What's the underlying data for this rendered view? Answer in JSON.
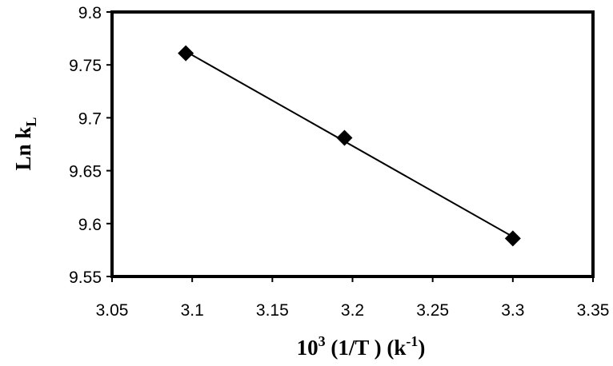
{
  "chart_data": {
    "type": "scatter",
    "title": "",
    "xlabel": {
      "base": "10",
      "exp": "3",
      "rest": " (1/T ) (k",
      "exp2": "-1",
      "end": ")"
    },
    "ylabel": {
      "base": "Ln k",
      "sub": "L"
    },
    "xlim": [
      3.05,
      3.35
    ],
    "ylim": [
      9.55,
      9.8
    ],
    "xticks": [
      "3.05",
      "3.1",
      "3.15",
      "3.2",
      "3.25",
      "3.3",
      "3.35"
    ],
    "yticks": [
      "9.55",
      "9.6",
      "9.65",
      "9.7",
      "9.75",
      "9.8"
    ],
    "grid": false,
    "legend": "none",
    "series": [
      {
        "x": [
          3.096,
          3.195,
          3.3
        ],
        "y": [
          9.761,
          9.681,
          9.586
        ],
        "marker": "diamond",
        "color": "#000000",
        "line": "linear-fit"
      }
    ]
  }
}
